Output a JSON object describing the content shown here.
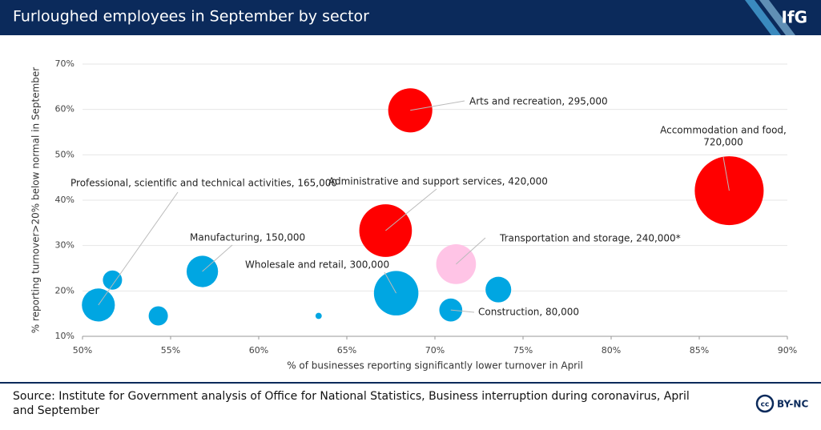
{
  "header": {
    "title": "Furloughed employees in September by sector",
    "logo": "IfG"
  },
  "chart_data": {
    "type": "bubble",
    "x_label": "% of businesses reporting significantly lower turnover in April",
    "y_label": "% reporting turnover>20% below normal in September",
    "xlim": [
      50,
      90
    ],
    "xticks": [
      {
        "value": 50,
        "label": "50%"
      },
      {
        "value": 55,
        "label": "55%"
      },
      {
        "value": 60,
        "label": "60%"
      },
      {
        "value": 65,
        "label": "65%"
      },
      {
        "value": 70,
        "label": "70%"
      },
      {
        "value": 75,
        "label": "75%"
      },
      {
        "value": 80,
        "label": "80%"
      },
      {
        "value": 85,
        "label": "85%"
      },
      {
        "value": 90,
        "label": "90%"
      }
    ],
    "ylim": [
      10,
      70
    ],
    "yticks": [
      {
        "value": 10,
        "label": "10%"
      },
      {
        "value": 20,
        "label": "20%"
      },
      {
        "value": 30,
        "label": "30%"
      },
      {
        "value": 40,
        "label": "40%"
      },
      {
        "value": 50,
        "label": "50%"
      },
      {
        "value": 60,
        "label": "60%"
      },
      {
        "value": 70,
        "label": "70%"
      }
    ],
    "grid": true,
    "points": [
      {
        "label": [
          "Arts and recreation, 295,000"
        ],
        "x": 68.6,
        "y": 59.8,
        "size": 295000,
        "color": "#ff0000"
      },
      {
        "label": [
          "Accommodation and food,",
          "720,000"
        ],
        "x": 86.7,
        "y": 42.1,
        "size": 720000,
        "color": "#ff0000"
      },
      {
        "label": [
          "Administrative and support services, 420,000"
        ],
        "x": 67.2,
        "y": 33.3,
        "size": 420000,
        "color": "#ff0000"
      },
      {
        "label": [
          "Transportation and storage, 240,000*"
        ],
        "x": 71.2,
        "y": 25.9,
        "size": 240000,
        "color": "#ffc4e6"
      },
      {
        "label": [
          "Wholesale and retail, 300,000"
        ],
        "x": 67.8,
        "y": 19.5,
        "size": 300000,
        "color": "#00a6e2"
      },
      {
        "label": [
          "Construction, 80,000"
        ],
        "x": 70.9,
        "y": 15.8,
        "size": 80000,
        "color": "#00a6e2"
      },
      {
        "label": [
          "Manufacturing, 150,000"
        ],
        "x": 56.8,
        "y": 24.3,
        "size": 150000,
        "color": "#00a6e2"
      },
      {
        "label": [
          "Professional, scientific and technical activities, 165,000"
        ],
        "x": 50.9,
        "y": 16.9,
        "size": 165000,
        "color": "#00a6e2"
      },
      {
        "label": null,
        "x": 51.7,
        "y": 22.4,
        "size": 56000,
        "color": "#00a6e2"
      },
      {
        "label": null,
        "x": 54.3,
        "y": 14.5,
        "size": 56000,
        "color": "#00a6e2"
      },
      {
        "label": null,
        "x": 63.4,
        "y": 14.5,
        "size": 6000,
        "color": "#00a6e2"
      },
      {
        "label": null,
        "x": 73.6,
        "y": 20.3,
        "size": 100000,
        "color": "#00a6e2"
      }
    ]
  },
  "footer": {
    "source": [
      "Source: Institute for Government analysis of Office for National Statistics, Business interruption during coronavirus, April",
      "and September"
    ],
    "license": "BY-NC"
  }
}
